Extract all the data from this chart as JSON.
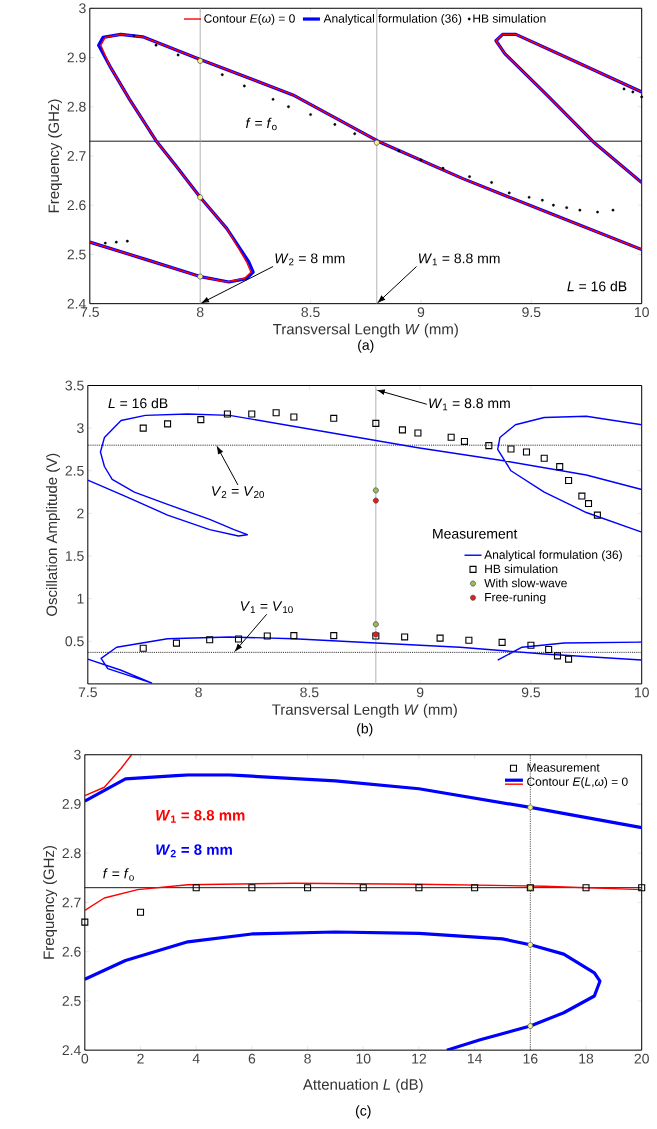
{
  "chart_data": [
    {
      "type": "line",
      "xlabel": "Transversal Length *W* (mm)",
      "ylabel": "Frequency (GHz)",
      "xlim": [
        7.5,
        10
      ],
      "ylim": [
        2.4,
        3
      ],
      "xticks": [
        7.5,
        8,
        8.5,
        9,
        9.5,
        10
      ],
      "yticks": [
        2.4,
        2.5,
        2.6,
        2.7,
        2.8,
        2.9,
        3
      ],
      "legend": "top",
      "series": [
        {
          "name": "Contour *E*(*ω*) = 0",
          "color": "#ff0000",
          "x": [
            7.5,
            7.76,
            8.0,
            8.12,
            8.2,
            8.23,
            8.21,
            8.12,
            8.0,
            7.89,
            7.8,
            7.68,
            7.59,
            7.55,
            7.57,
            7.64,
            7.74,
            8.0,
            8.42,
            8.81,
            9.19,
            9.57,
            10,
            null,
            10,
            9.78,
            9.57,
            9.38,
            9.34,
            9.37,
            9.43,
            9.66,
            10
          ],
          "values": [
            2.525,
            2.489,
            2.455,
            2.444,
            2.451,
            2.464,
            2.485,
            2.553,
            2.616,
            2.68,
            2.731,
            2.815,
            2.883,
            2.925,
            2.941,
            2.947,
            2.942,
            2.896,
            2.824,
            2.729,
            2.654,
            2.586,
            2.51,
            null,
            2.646,
            2.729,
            2.824,
            2.908,
            2.934,
            2.947,
            2.947,
            2.9,
            2.83
          ]
        },
        {
          "name": "Analytical formulation (36)",
          "color": "#0000ff",
          "x": [
            7.5,
            7.76,
            8.0,
            8.13,
            8.21,
            8.24,
            8.22,
            8.12,
            8.0,
            7.89,
            7.8,
            7.68,
            7.59,
            7.54,
            7.56,
            7.64,
            7.74,
            8.0,
            8.42,
            8.81,
            9.19,
            9.57,
            10,
            null,
            10,
            9.78,
            9.57,
            9.38,
            9.34,
            9.37,
            9.43,
            9.66,
            10
          ],
          "values": [
            2.525,
            2.489,
            2.455,
            2.444,
            2.451,
            2.464,
            2.485,
            2.553,
            2.616,
            2.68,
            2.731,
            2.815,
            2.883,
            2.925,
            2.941,
            2.947,
            2.942,
            2.896,
            2.824,
            2.729,
            2.654,
            2.586,
            2.51,
            null,
            2.646,
            2.729,
            2.824,
            2.908,
            2.934,
            2.947,
            2.947,
            2.9,
            2.83
          ]
        },
        {
          "name": "HB simulation",
          "type": "scatter",
          "marker": "circle",
          "color": "#000000",
          "x": [
            7.57,
            7.62,
            7.67,
            7.7,
            7.8,
            7.9,
            8.1,
            8.2,
            8.33,
            8.4,
            8.5,
            8.61,
            8.7,
            8.81,
            8.9,
            9.0,
            9.1,
            9.22,
            9.32,
            9.4,
            9.49,
            9.55,
            9.6,
            9.66,
            9.72,
            9.8,
            9.87,
            9.92,
            9.96,
            10
          ],
          "values": [
            2.523,
            2.525,
            2.527,
            2.944,
            2.925,
            2.905,
            2.865,
            2.842,
            2.815,
            2.8,
            2.784,
            2.764,
            2.745,
            null,
            2.71,
            2.692,
            2.675,
            2.658,
            2.646,
            2.625,
            2.616,
            2.61,
            2.6,
            2.595,
            2.59,
            2.586,
            2.59,
            2.836,
            2.83,
            2.82
          ]
        },
        {
          "type": "scatter",
          "marker": "circle",
          "color": "#f0f08c",
          "x": [
            8,
            8,
            8,
            8.8
          ],
          "values": [
            2.893,
            2.616,
            2.455,
            2.727
          ]
        }
      ],
      "ref_lines": [
        {
          "axis": "y",
          "value": 2.73,
          "label": "*f* = *f*$_{o}$",
          "color": "#000000"
        },
        {
          "axis": "x",
          "value": 8,
          "label": "*W*$_{2}$ = 8 mm",
          "color": "#a0a0a0"
        },
        {
          "axis": "x",
          "value": 8.8,
          "label": "*W*$_{1}$ = 8.8 mm",
          "color": "#a0a0a0"
        }
      ],
      "annotations": [
        "*L* = 16 dB",
        "(a)"
      ]
    },
    {
      "type": "line",
      "xlabel": "Transversal Length *W* (mm)",
      "ylabel": "Oscillation Amplitude (V)",
      "xlim": [
        7.5,
        10
      ],
      "ylim": [
        0,
        3.5
      ],
      "xticks": [
        7.5,
        8,
        8.5,
        9,
        9.5,
        10
      ],
      "yticks": [
        0.5,
        1,
        1.5,
        2,
        2.5,
        3,
        3.5
      ],
      "legend": "right",
      "series": [
        {
          "name": "Analytical formulation (36)",
          "color": "#0000ff",
          "x": [
            7.5,
            7.67,
            7.86,
            8.05,
            8.18,
            8.22,
            8.16,
            8.05,
            7.86,
            7.71,
            7.61,
            7.575,
            7.557,
            7.575,
            7.65,
            7.76,
            7.95,
            8.14,
            8.61,
            8.99,
            9.37,
            9.75,
            10,
            null,
            10,
            9.75,
            9.56,
            9.41,
            9.35,
            9.36,
            9.43,
            9.56,
            9.75,
            10,
            null,
            7.5,
            7.65,
            7.79,
            null,
            7.79,
            7.59,
            7.56,
            7.63,
            7.86,
            8.14,
            8.43,
            8.8,
            9.18,
            9.56,
            10,
            null,
            9.35,
            9.46,
            9.65,
            10
          ],
          "values": [
            2.39,
            2.2,
            1.98,
            1.81,
            1.735,
            1.75,
            1.81,
            1.93,
            2.105,
            2.25,
            2.4,
            2.55,
            2.72,
            2.89,
            3.09,
            3.15,
            3.165,
            3.15,
            2.94,
            2.77,
            2.62,
            2.45,
            2.28,
            null,
            1.78,
            2.01,
            2.25,
            2.5,
            2.75,
            2.89,
            3.04,
            3.125,
            3.14,
            3.04,
            null,
            0.29,
            0.16,
            0.01,
            null,
            0.01,
            0.18,
            0.3,
            0.43,
            0.53,
            0.55,
            0.53,
            0.48,
            0.43,
            0.35,
            0.28,
            null,
            0.28,
            0.43,
            0.48,
            0.49
          ]
        },
        {
          "name": "HB simulation",
          "type": "scatter",
          "marker": "square",
          "color": "#000000",
          "x": [
            7.75,
            7.86,
            8.01,
            8.13,
            8.24,
            8.35,
            8.43,
            8.61,
            8.8,
            8.92,
            8.99,
            9.14,
            9.2,
            9.31,
            9.41,
            9.48,
            9.56,
            9.63,
            9.67,
            9.73,
            9.76,
            9.8,
            7.75,
            7.9,
            8.05,
            8.18,
            8.31,
            8.43,
            8.61,
            8.8,
            8.93,
            9.09,
            9.22,
            9.37,
            9.5,
            9.58,
            9.62,
            9.67
          ],
          "values": [
            3.0,
            3.05,
            3.1,
            3.165,
            3.165,
            3.18,
            3.13,
            3.115,
            3.056,
            2.98,
            2.943,
            2.893,
            2.844,
            2.795,
            2.755,
            2.72,
            2.647,
            2.548,
            2.386,
            2.203,
            2.115,
            1.98,
            0.418,
            0.478,
            0.517,
            0.527,
            0.561,
            0.566,
            0.566,
            0.561,
            0.551,
            0.537,
            0.512,
            0.487,
            0.453,
            0.403,
            0.329,
            0.29
          ]
        },
        {
          "name": "With slow-wave",
          "type": "scatter",
          "marker": "circle",
          "color": "#9bbb59",
          "x": [
            8.8,
            8.8
          ],
          "values": [
            2.27,
            0.7
          ]
        },
        {
          "name": "Free-runing",
          "type": "scatter",
          "marker": "circle",
          "color": "#e02020",
          "x": [
            8.8,
            8.8
          ],
          "values": [
            2.15,
            0.58
          ]
        }
      ],
      "ref_lines": [
        {
          "axis": "x",
          "value": 8.8,
          "label": "*W*$_{1}$ = 8.8 mm",
          "color": "#a0a0a0"
        },
        {
          "axis": "y",
          "value": 2.8,
          "label": "*V*$_{2}$ = *V*$_{20}$",
          "color": "#000000",
          "line_style": "dotted"
        },
        {
          "axis": "y",
          "value": 0.37,
          "label": "*V*$_{1}$ = *V*$_{10}$",
          "color": "#000000",
          "line_style": "dotted"
        }
      ],
      "annotations": [
        "*L* = 16 dB",
        "Measurement",
        "(b)"
      ]
    },
    {
      "type": "line",
      "xlabel": "Attenuation *L* (dB)",
      "ylabel": "Frequency (GHz)",
      "xlim": [
        0,
        20
      ],
      "ylim": [
        2.4,
        3
      ],
      "xticks": [
        0,
        2,
        4,
        6,
        8,
        10,
        12,
        14,
        16,
        18,
        20
      ],
      "yticks": [
        2.4,
        2.5,
        2.6,
        2.7,
        2.8,
        2.9,
        3
      ],
      "legend": "top right",
      "series": [
        {
          "name": "*W*$_{1}$ = 8.8 mm",
          "color": "#ff0000",
          "x": [
            0,
            0.7,
            1.3,
            1.68,
            null,
            0,
            0.7,
            1.9,
            3.7,
            7.5,
            12,
            16.5,
            20
          ],
          "values": [
            2.917,
            2.934,
            2.972,
            3.0,
            null,
            2.684,
            2.709,
            2.726,
            2.736,
            2.739,
            2.737,
            2.733,
            2.726
          ]
        },
        {
          "name": "*W*$_{2}$ = 8 mm",
          "color": "#0000ff",
          "x": [
            0,
            1.46,
            3.7,
            5.2,
            9,
            12,
            16,
            20,
            null,
            0,
            1.46,
            3.7,
            6,
            9,
            12,
            15,
            16,
            17.2,
            18.3,
            18.5,
            18.3,
            17.2,
            16,
            14.2,
            13
          ],
          "values": [
            2.906,
            2.951,
            2.959,
            2.959,
            2.947,
            2.931,
            2.893,
            2.852,
            null,
            2.544,
            2.582,
            2.62,
            2.636,
            2.64,
            2.637,
            2.626,
            2.614,
            2.595,
            2.557,
            2.54,
            2.51,
            2.476,
            2.449,
            2.421,
            2.4
          ]
        },
        {
          "name": "Measurement",
          "type": "scatter",
          "marker": "square",
          "color": "#000000",
          "x": [
            0,
            2,
            4,
            6,
            8,
            10,
            12,
            14,
            16,
            18,
            20
          ],
          "values": [
            2.66,
            2.68,
            2.73,
            2.73,
            2.73,
            2.73,
            2.73,
            2.73,
            2.73,
            2.73,
            2.73
          ]
        },
        {
          "type": "scatter",
          "marker": "circle",
          "color": "#f0f08c",
          "x": [
            16,
            16,
            16,
            16
          ],
          "values": [
            2.893,
            2.73,
            2.614,
            2.449
          ]
        }
      ],
      "ref_lines": [
        {
          "axis": "y",
          "value": 2.73,
          "label": "*f* = *f*$_{o}$",
          "color": "#000000"
        },
        {
          "axis": "x",
          "value": 16,
          "color": "#000000",
          "line_style": "dotted"
        }
      ],
      "annotations": [
        "Contour *E*(*L*,*ω*) = 0",
        "(c)"
      ]
    }
  ]
}
